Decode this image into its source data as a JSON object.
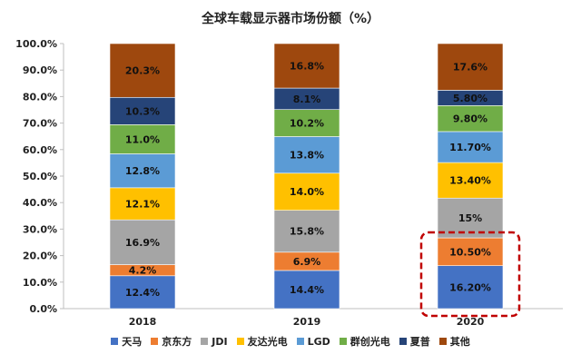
{
  "chart_data": {
    "type": "bar",
    "stacked": true,
    "title": "全球车载显示器市场份额（%）",
    "categories": [
      "2018",
      "2019",
      "2020"
    ],
    "ylim": [
      0,
      100
    ],
    "yticks": [
      "0.0%",
      "10.0%",
      "20.0%",
      "30.0%",
      "40.0%",
      "50.0%",
      "60.0%",
      "70.0%",
      "80.0%",
      "90.0%",
      "100.0%"
    ],
    "series": [
      {
        "name": "天马",
        "color": "#4472C4",
        "values": [
          12.4,
          14.4,
          16.2
        ],
        "labels": [
          "12.4%",
          "14.4%",
          "16.20%"
        ]
      },
      {
        "name": "京东方",
        "color": "#ED7D31",
        "values": [
          4.2,
          6.9,
          10.5
        ],
        "labels": [
          "4.2%",
          "6.9%",
          "10.50%"
        ]
      },
      {
        "name": "JDI",
        "color": "#A5A5A5",
        "values": [
          16.9,
          15.8,
          15
        ],
        "labels": [
          "16.9%",
          "15.8%",
          "15%"
        ]
      },
      {
        "name": "友达光电",
        "color": "#FFC000",
        "values": [
          12.1,
          14.0,
          13.4
        ],
        "labels": [
          "12.1%",
          "14.0%",
          "13.40%"
        ]
      },
      {
        "name": "LGD",
        "color": "#5B9BD5",
        "values": [
          12.8,
          13.8,
          11.7
        ],
        "labels": [
          "12.8%",
          "13.8%",
          "11.70%"
        ]
      },
      {
        "name": "群创光电",
        "color": "#70AD47",
        "values": [
          11.0,
          10.2,
          9.8
        ],
        "labels": [
          "11.0%",
          "10.2%",
          "9.80%"
        ]
      },
      {
        "name": "夏普",
        "color": "#264478",
        "values": [
          10.3,
          8.1,
          5.8
        ],
        "labels": [
          "10.3%",
          "8.1%",
          "5.80%"
        ]
      },
      {
        "name": "其他",
        "color": "#9E480E",
        "values": [
          20.3,
          16.8,
          17.6
        ],
        "labels": [
          "20.3%",
          "16.8%",
          "17.6%"
        ]
      }
    ],
    "highlight": {
      "category": "2020",
      "series": [
        "天马",
        "京东方"
      ],
      "style": "dashed",
      "color": "#C00000"
    },
    "legend_position": "bottom",
    "grid": false
  }
}
